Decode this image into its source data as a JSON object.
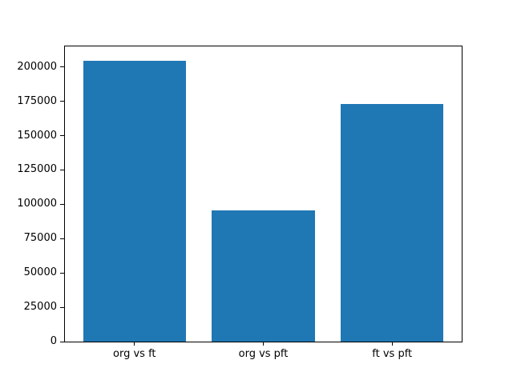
{
  "chart_data": {
    "type": "bar",
    "categories": [
      "org vs ft",
      "org vs pft",
      "ft vs pft"
    ],
    "values": [
      204500,
      95500,
      173000
    ],
    "title": "",
    "xlabel": "",
    "ylabel": "",
    "ylim": [
      0,
      215000
    ],
    "yticks": [
      0,
      25000,
      50000,
      75000,
      100000,
      125000,
      150000,
      175000,
      200000
    ],
    "bar_color": "#1f77b4",
    "spine_color": "#000000",
    "background_color": "#ffffff",
    "grid": false,
    "legend": null
  }
}
